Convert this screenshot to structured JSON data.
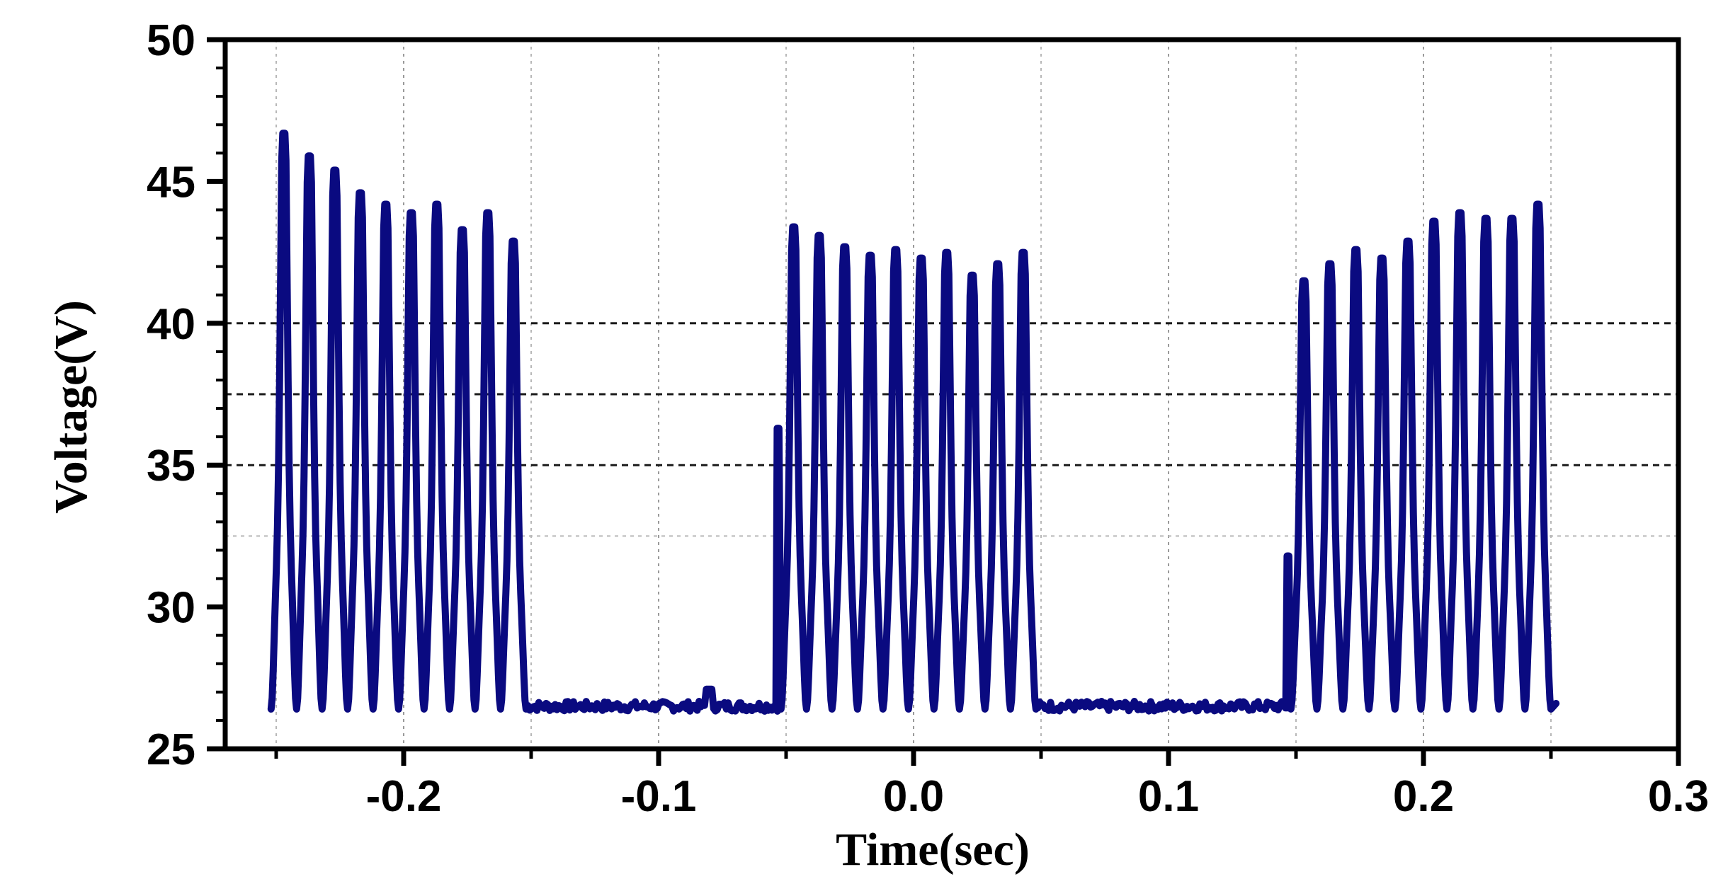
{
  "chart_data": {
    "type": "line",
    "title": "",
    "xlabel": "Time(sec)",
    "ylabel": "Voltage(V)",
    "xlim": [
      -0.27,
      0.3
    ],
    "ylim": [
      25,
      50
    ],
    "x_ticks": [
      -0.2,
      -0.1,
      0.0,
      0.1,
      0.2,
      0.3
    ],
    "x_tick_labels": [
      "-0.2",
      "-0.1",
      "0.0",
      "0.1",
      "0.2",
      "0.3"
    ],
    "y_ticks": [
      25,
      30,
      35,
      40,
      45,
      50
    ],
    "y_tick_labels": [
      "25",
      "30",
      "35",
      "40",
      "45",
      "50"
    ],
    "grid": {
      "vertical": "light dotted gray at x ticks",
      "horizontal": "black dashed at 35, 37.5, 40; light dotted at 32.5"
    },
    "legend": "none",
    "series_color": "#0a0a80",
    "series": [
      {
        "x_range": [
          -0.252,
          0.252
        ],
        "description_points": [
          {
            "x": -0.252,
            "y": 27.5
          },
          {
            "x": -0.245,
            "y": 46.7
          },
          {
            "x": -0.235,
            "y": 45.9
          },
          {
            "x": -0.225,
            "y": 45.4
          },
          {
            "x": -0.215,
            "y": 44.6
          },
          {
            "x": -0.205,
            "y": 44.2
          },
          {
            "x": -0.195,
            "y": 43.9
          },
          {
            "x": -0.185,
            "y": 44.2
          },
          {
            "x": -0.175,
            "y": 43.3
          },
          {
            "x": -0.165,
            "y": 43.9
          },
          {
            "x": -0.155,
            "y": 42.9
          },
          {
            "x": -0.15,
            "y": 26.6
          },
          {
            "x": -0.1,
            "y": 26.5
          },
          {
            "x": -0.08,
            "y": 27.1
          },
          {
            "x": -0.055,
            "y": 26.5
          },
          {
            "x": -0.053,
            "y": 36.3
          },
          {
            "x": -0.045,
            "y": 43.4
          },
          {
            "x": -0.035,
            "y": 43.1
          },
          {
            "x": -0.025,
            "y": 42.7
          },
          {
            "x": -0.015,
            "y": 42.4
          },
          {
            "x": -0.005,
            "y": 42.6
          },
          {
            "x": 0.005,
            "y": 42.3
          },
          {
            "x": 0.015,
            "y": 42.5
          },
          {
            "x": 0.025,
            "y": 41.7
          },
          {
            "x": 0.035,
            "y": 42.1
          },
          {
            "x": 0.045,
            "y": 42.5
          },
          {
            "x": 0.05,
            "y": 26.5
          },
          {
            "x": 0.1,
            "y": 26.5
          },
          {
            "x": 0.145,
            "y": 26.5
          },
          {
            "x": 0.147,
            "y": 31.8
          },
          {
            "x": 0.155,
            "y": 41.5
          },
          {
            "x": 0.165,
            "y": 42.1
          },
          {
            "x": 0.175,
            "y": 42.6
          },
          {
            "x": 0.185,
            "y": 42.3
          },
          {
            "x": 0.195,
            "y": 42.9
          },
          {
            "x": 0.205,
            "y": 43.6
          },
          {
            "x": 0.215,
            "y": 43.9
          },
          {
            "x": 0.225,
            "y": 43.7
          },
          {
            "x": 0.235,
            "y": 43.7
          },
          {
            "x": 0.245,
            "y": 44.2
          },
          {
            "x": 0.252,
            "y": 26.6
          }
        ],
        "bursts": [
          {
            "start": -0.252,
            "end": -0.152,
            "low": 26.4,
            "peaks": [
              46.7,
              45.9,
              45.4,
              44.6,
              44.2,
              43.9,
              44.2,
              43.3,
              43.9,
              42.9
            ]
          },
          {
            "start": -0.052,
            "end": 0.048,
            "low": 26.4,
            "lead_step": 36.3,
            "peaks": [
              43.4,
              43.1,
              42.7,
              42.4,
              42.6,
              42.3,
              42.5,
              41.7,
              42.1,
              42.5
            ]
          },
          {
            "start": 0.148,
            "end": 0.25,
            "low": 26.4,
            "lead_step": 31.8,
            "peaks": [
              41.5,
              42.1,
              42.6,
              42.3,
              42.9,
              43.6,
              43.9,
              43.7,
              43.7,
              44.2
            ]
          }
        ],
        "baseline_segments": [
          {
            "start": -0.152,
            "end": -0.052,
            "level": 26.5
          },
          {
            "start": 0.048,
            "end": 0.148,
            "level": 26.5
          }
        ]
      }
    ]
  }
}
